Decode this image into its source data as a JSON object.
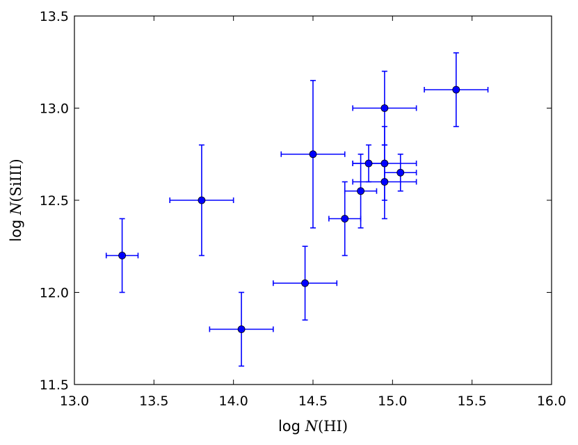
{
  "chart_data": {
    "type": "scatter",
    "title": "",
    "xlabel": {
      "prefix": "log ",
      "italic": "N",
      "rest": "(HI)"
    },
    "ylabel": {
      "prefix": "log ",
      "italic": "N",
      "rest": "(SiIII)"
    },
    "xlim": [
      13.0,
      16.0
    ],
    "ylim": [
      11.5,
      13.5
    ],
    "xticks": [
      "13.0",
      "13.5",
      "14.0",
      "14.5",
      "15.0",
      "15.5",
      "16.0"
    ],
    "yticks": [
      "11.5",
      "12.0",
      "12.5",
      "13.0",
      "13.5"
    ],
    "grid": false,
    "legend": "none",
    "color": "#0000ff",
    "marker_color": "#0000ff",
    "points": [
      {
        "x": 13.3,
        "y": 12.2,
        "xerr": [
          0.1,
          0.1
        ],
        "yerr": [
          0.2,
          0.2
        ]
      },
      {
        "x": 13.8,
        "y": 12.5,
        "xerr": [
          0.2,
          0.2
        ],
        "yerr": [
          0.3,
          0.3
        ]
      },
      {
        "x": 14.05,
        "y": 11.8,
        "xerr": [
          0.2,
          0.2
        ],
        "yerr": [
          0.2,
          0.2
        ]
      },
      {
        "x": 14.45,
        "y": 12.05,
        "xerr": [
          0.2,
          0.2
        ],
        "yerr": [
          0.2,
          0.2
        ]
      },
      {
        "x": 14.5,
        "y": 12.75,
        "xerr": [
          0.2,
          0.2
        ],
        "yerr": [
          0.4,
          0.4
        ]
      },
      {
        "x": 14.7,
        "y": 12.4,
        "xerr": [
          0.1,
          0.1
        ],
        "yerr": [
          0.2,
          0.2
        ]
      },
      {
        "x": 14.8,
        "y": 12.55,
        "xerr": [
          0.1,
          0.1
        ],
        "yerr": [
          0.2,
          0.2
        ]
      },
      {
        "x": 14.85,
        "y": 12.7,
        "xerr": [
          0.1,
          0.1
        ],
        "yerr": [
          0.1,
          0.1
        ]
      },
      {
        "x": 14.95,
        "y": 13.0,
        "xerr": [
          0.2,
          0.2
        ],
        "yerr": [
          0.2,
          0.2
        ]
      },
      {
        "x": 14.95,
        "y": 12.7,
        "xerr": [
          0.2,
          0.2
        ],
        "yerr": [
          0.2,
          0.2
        ]
      },
      {
        "x": 14.95,
        "y": 12.6,
        "xerr": [
          0.2,
          0.2
        ],
        "yerr": [
          0.2,
          0.2
        ]
      },
      {
        "x": 15.05,
        "y": 12.65,
        "xerr": [
          0.1,
          0.1
        ],
        "yerr": [
          0.1,
          0.1
        ]
      },
      {
        "x": 15.4,
        "y": 13.1,
        "xerr": [
          0.2,
          0.2
        ],
        "yerr": [
          0.2,
          0.2
        ]
      }
    ]
  }
}
